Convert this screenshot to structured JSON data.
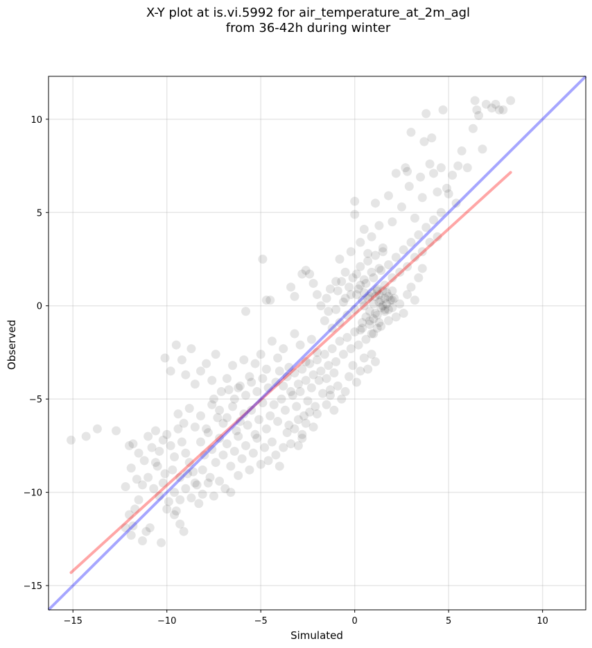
{
  "chart_data": {
    "type": "scatter",
    "title": "X-Y plot at is.vi.5992 for air_temperature_at_2m_agl",
    "subtitle": "from 36-42h during winter",
    "xlabel": "Simulated",
    "ylabel": "Observed",
    "xlim": [
      -16.3,
      12.3
    ],
    "ylim": [
      -16.3,
      12.3
    ],
    "xticks": [
      -15,
      -10,
      -5,
      0,
      5,
      10
    ],
    "yticks": [
      -15,
      -10,
      -5,
      0,
      5,
      10
    ],
    "xtick_labels": [
      "−15",
      "−10",
      "−5",
      "0",
      "5",
      "10"
    ],
    "ytick_labels": [
      "−15",
      "−10",
      "−5",
      "0",
      "5",
      "10"
    ],
    "grid": true,
    "point_color": "#000000",
    "point_alpha": 0.1,
    "fit_line": {
      "color": "#ff0000",
      "x": [
        -15.1,
        8.3
      ],
      "y": [
        -14.3,
        7.15
      ]
    },
    "identity_line": {
      "color": "#0000ff",
      "x": [
        -16.3,
        12.3
      ],
      "y": [
        -16.3,
        12.3
      ]
    },
    "points": [
      [
        -15.1,
        -7.2
      ],
      [
        -14.3,
        -7.0
      ],
      [
        -13.7,
        -6.6
      ],
      [
        -12.7,
        -6.7
      ],
      [
        -12.2,
        -11.9
      ],
      [
        -12.0,
        -11.2
      ],
      [
        -11.9,
        -12.3
      ],
      [
        -11.8,
        -11.8
      ],
      [
        -11.5,
        -10.4
      ],
      [
        -11.3,
        -12.6
      ],
      [
        -11.1,
        -12.1
      ],
      [
        -10.9,
        -11.9
      ],
      [
        -10.3,
        -12.7
      ],
      [
        -10.0,
        -10.9
      ],
      [
        -9.6,
        -11.2
      ],
      [
        -9.3,
        -11.7
      ],
      [
        -9.1,
        -12.1
      ],
      [
        -11.8,
        -7.4
      ],
      [
        -11.5,
        -7.9
      ],
      [
        -11.2,
        -8.3
      ],
      [
        -11.0,
        -7.0
      ],
      [
        -10.8,
        -7.6
      ],
      [
        -10.6,
        -8.4
      ],
      [
        -10.4,
        -7.8
      ],
      [
        -10.2,
        -7.2
      ],
      [
        -10.0,
        -6.9
      ],
      [
        -9.8,
        -7.5
      ],
      [
        -9.6,
        -8.1
      ],
      [
        -9.4,
        -6.6
      ],
      [
        -9.2,
        -7.3
      ],
      [
        -9.0,
        -7.9
      ],
      [
        -8.8,
        -8.4
      ],
      [
        -11.6,
        -9.3
      ],
      [
        -11.3,
        -9.6
      ],
      [
        -11.0,
        -9.2
      ],
      [
        -10.7,
        -9.8
      ],
      [
        -10.4,
        -10.2
      ],
      [
        -10.2,
        -9.5
      ],
      [
        -9.9,
        -10.5
      ],
      [
        -9.6,
        -10.0
      ],
      [
        -9.3,
        -10.4
      ],
      [
        -9.0,
        -9.8
      ],
      [
        -8.7,
        -10.3
      ],
      [
        -8.4,
        -9.6
      ],
      [
        -8.1,
        -10.1
      ],
      [
        -7.8,
        -9.5
      ],
      [
        -7.5,
        -10.2
      ],
      [
        -7.2,
        -9.4
      ],
      [
        -6.9,
        -9.8
      ],
      [
        -6.6,
        -10.0
      ],
      [
        -6.2,
        -9.1
      ],
      [
        -10.1,
        -2.8
      ],
      [
        -9.8,
        -3.5
      ],
      [
        -9.5,
        -2.1
      ],
      [
        -9.2,
        -2.9
      ],
      [
        -9.0,
        -3.7
      ],
      [
        -8.7,
        -2.3
      ],
      [
        -8.5,
        -4.2
      ],
      [
        -8.2,
        -3.5
      ],
      [
        -7.9,
        -3.1
      ],
      [
        -7.6,
        -4.0
      ],
      [
        -7.4,
        -2.6
      ],
      [
        -7.1,
        -4.6
      ],
      [
        -6.8,
        -3.9
      ],
      [
        -6.5,
        -3.2
      ],
      [
        -6.2,
        -4.4
      ],
      [
        -5.9,
        -2.9
      ],
      [
        -5.6,
        -3.8
      ],
      [
        -5.3,
        -3.1
      ],
      [
        -5.0,
        -2.6
      ],
      [
        -4.7,
        -3.4
      ],
      [
        -4.4,
        -1.9
      ],
      [
        -4.1,
        -2.8
      ],
      [
        -3.8,
        -2.3
      ],
      [
        -3.5,
        -3.3
      ],
      [
        -3.2,
        -1.5
      ],
      [
        -2.9,
        -2.1
      ],
      [
        -2.6,
        -3.0
      ],
      [
        -2.3,
        -1.8
      ],
      [
        -2.0,
        -2.5
      ],
      [
        -5.8,
        -0.3
      ],
      [
        -4.9,
        2.5
      ],
      [
        -4.7,
        0.3
      ],
      [
        -4.5,
        0.3
      ],
      [
        -3.4,
        1.0
      ],
      [
        -3.2,
        0.5
      ],
      [
        -2.8,
        1.7
      ],
      [
        -2.6,
        1.9
      ],
      [
        -2.4,
        1.7
      ],
      [
        -2.2,
        1.2
      ],
      [
        -2.0,
        0.6
      ],
      [
        -1.8,
        0.0
      ],
      [
        -1.5,
        0.4
      ],
      [
        -1.3,
        0.9
      ],
      [
        -1.0,
        1.3
      ],
      [
        -0.8,
        2.5
      ],
      [
        -0.5,
        1.8
      ],
      [
        -0.2,
        2.9
      ],
      [
        0.0,
        5.6
      ],
      [
        0.0,
        4.9
      ],
      [
        0.3,
        3.4
      ],
      [
        0.5,
        4.1
      ],
      [
        0.7,
        2.8
      ],
      [
        0.9,
        3.7
      ],
      [
        1.1,
        5.5
      ],
      [
        1.3,
        4.3
      ],
      [
        1.5,
        3.1
      ],
      [
        1.8,
        5.9
      ],
      [
        2.0,
        4.5
      ],
      [
        2.2,
        7.1
      ],
      [
        2.5,
        5.3
      ],
      [
        2.7,
        7.4
      ],
      [
        2.8,
        7.2
      ],
      [
        2.9,
        6.4
      ],
      [
        3.0,
        9.3
      ],
      [
        3.2,
        4.7
      ],
      [
        3.5,
        6.9
      ],
      [
        3.6,
        5.8
      ],
      [
        3.7,
        8.8
      ],
      [
        3.8,
        10.3
      ],
      [
        4.0,
        7.6
      ],
      [
        4.1,
        9.0
      ],
      [
        4.2,
        7.1
      ],
      [
        4.4,
        6.1
      ],
      [
        4.6,
        7.4
      ],
      [
        4.7,
        10.5
      ],
      [
        4.9,
        6.3
      ],
      [
        5.0,
        6.0
      ],
      [
        5.2,
        7.0
      ],
      [
        5.4,
        5.5
      ],
      [
        5.5,
        7.5
      ],
      [
        5.7,
        8.3
      ],
      [
        6.0,
        7.4
      ],
      [
        6.3,
        9.5
      ],
      [
        6.4,
        11.0
      ],
      [
        6.5,
        10.5
      ],
      [
        6.6,
        10.2
      ],
      [
        6.8,
        8.4
      ],
      [
        7.0,
        10.8
      ],
      [
        7.3,
        10.6
      ],
      [
        7.5,
        10.8
      ],
      [
        7.7,
        10.5
      ],
      [
        7.9,
        10.5
      ],
      [
        8.3,
        11.0
      ],
      [
        -7.5,
        -5.0
      ],
      [
        -7.2,
        -5.6
      ],
      [
        -7.0,
        -6.3
      ],
      [
        -6.8,
        -6.0
      ],
      [
        -6.5,
        -5.4
      ],
      [
        -6.3,
        -6.7
      ],
      [
        -6.1,
        -6.2
      ],
      [
        -5.9,
        -5.8
      ],
      [
        -5.7,
        -6.4
      ],
      [
        -5.5,
        -5.6
      ],
      [
        -5.3,
        -6.9
      ],
      [
        -5.1,
        -6.1
      ],
      [
        -4.9,
        -5.2
      ],
      [
        -4.7,
        -6.6
      ],
      [
        -4.5,
        -5.9
      ],
      [
        -4.3,
        -5.3
      ],
      [
        -4.1,
        -6.2
      ],
      [
        -3.9,
        -5.0
      ],
      [
        -3.7,
        -5.6
      ],
      [
        -3.5,
        -6.4
      ],
      [
        -3.3,
        -4.8
      ],
      [
        -3.1,
        -5.4
      ],
      [
        -2.9,
        -4.6
      ],
      [
        -2.7,
        -5.9
      ],
      [
        -2.5,
        -5.1
      ],
      [
        -2.3,
        -4.4
      ],
      [
        -2.1,
        -5.4
      ],
      [
        -1.9,
        -4.0
      ],
      [
        -1.7,
        -4.7
      ],
      [
        -1.5,
        -3.9
      ],
      [
        -1.3,
        -4.5
      ],
      [
        -1.1,
        -3.6
      ],
      [
        -8.2,
        -7.3
      ],
      [
        -8.0,
        -8.0
      ],
      [
        -7.8,
        -6.8
      ],
      [
        -7.6,
        -7.7
      ],
      [
        -7.4,
        -8.4
      ],
      [
        -7.2,
        -7.1
      ],
      [
        -7.0,
        -8.0
      ],
      [
        -6.8,
        -7.4
      ],
      [
        -6.6,
        -8.6
      ],
      [
        -6.4,
        -7.8
      ],
      [
        -6.2,
        -7.0
      ],
      [
        -6.0,
        -8.2
      ],
      [
        -5.8,
        -7.5
      ],
      [
        -5.6,
        -8.8
      ],
      [
        -5.4,
        -7.9
      ],
      [
        -5.2,
        -7.1
      ],
      [
        -5.0,
        -8.5
      ],
      [
        -4.8,
        -7.6
      ],
      [
        -4.6,
        -8.3
      ],
      [
        -4.4,
        -7.3
      ],
      [
        -4.2,
        -8.0
      ],
      [
        -4.0,
        -8.6
      ],
      [
        -3.8,
        -7.6
      ],
      [
        -3.6,
        -6.8
      ],
      [
        -3.4,
        -7.4
      ],
      [
        -3.2,
        -6.6
      ],
      [
        -3.0,
        -6.1
      ],
      [
        -2.8,
        -7.1
      ],
      [
        -2.6,
        -6.3
      ],
      [
        -2.4,
        -5.7
      ],
      [
        -2.2,
        -6.5
      ],
      [
        -2.0,
        -5.8
      ],
      [
        -9.4,
        -5.8
      ],
      [
        -9.1,
        -6.3
      ],
      [
        -8.8,
        -5.5
      ],
      [
        -8.5,
        -6.5
      ],
      [
        -8.2,
        -5.9
      ],
      [
        -7.9,
        -6.6
      ],
      [
        -7.6,
        -5.3
      ],
      [
        -7.3,
        -6.0
      ],
      [
        -4.2,
        -4.1
      ],
      [
        -4.0,
        -3.5
      ],
      [
        -3.8,
        -4.3
      ],
      [
        -3.6,
        -3.8
      ],
      [
        -3.4,
        -4.6
      ],
      [
        -3.2,
        -3.6
      ],
      [
        -3.0,
        -4.2
      ],
      [
        -2.8,
        -3.4
      ],
      [
        -2.6,
        -4.0
      ],
      [
        -2.4,
        -3.1
      ],
      [
        -2.2,
        -3.7
      ],
      [
        -2.0,
        -2.9
      ],
      [
        -1.8,
        -3.5
      ],
      [
        -1.6,
        -2.6
      ],
      [
        -1.4,
        -3.2
      ],
      [
        -1.2,
        -2.3
      ],
      [
        -1.0,
        -3.0
      ],
      [
        -0.8,
        -1.9
      ],
      [
        -0.6,
        -2.6
      ],
      [
        -0.4,
        -1.7
      ],
      [
        -0.2,
        -2.3
      ],
      [
        0.0,
        -1.4
      ],
      [
        0.2,
        -2.1
      ],
      [
        0.4,
        -1.2
      ],
      [
        0.6,
        -1.8
      ],
      [
        0.8,
        -0.8
      ],
      [
        1.0,
        -1.5
      ],
      [
        1.2,
        -0.5
      ],
      [
        1.4,
        -1.1
      ],
      [
        1.6,
        -0.2
      ],
      [
        1.8,
        -0.8
      ],
      [
        2.0,
        0.3
      ],
      [
        -1.6,
        -0.8
      ],
      [
        -1.4,
        -0.3
      ],
      [
        -1.2,
        -1.2
      ],
      [
        -1.0,
        -0.2
      ],
      [
        -0.8,
        -0.9
      ],
      [
        -0.6,
        0.2
      ],
      [
        -0.4,
        -0.5
      ],
      [
        -0.2,
        0.6
      ],
      [
        0.0,
        -0.2
      ],
      [
        0.2,
        0.9
      ],
      [
        0.4,
        0.3
      ],
      [
        0.6,
        1.2
      ],
      [
        0.8,
        0.5
      ],
      [
        1.0,
        1.5
      ],
      [
        1.2,
        0.8
      ],
      [
        1.4,
        1.9
      ],
      [
        1.6,
        1.1
      ],
      [
        1.8,
        2.2
      ],
      [
        2.0,
        1.5
      ],
      [
        2.2,
        2.6
      ],
      [
        2.4,
        1.8
      ],
      [
        2.6,
        3.0
      ],
      [
        2.8,
        2.1
      ],
      [
        3.0,
        3.4
      ],
      [
        3.2,
        2.6
      ],
      [
        3.4,
        3.8
      ],
      [
        3.6,
        2.9
      ],
      [
        3.8,
        4.2
      ],
      [
        4.0,
        3.4
      ],
      [
        4.2,
        4.6
      ],
      [
        4.4,
        3.7
      ],
      [
        4.6,
        5.0
      ],
      [
        0.5,
        0.0
      ],
      [
        0.7,
        0.4
      ],
      [
        0.8,
        -0.3
      ],
      [
        0.9,
        0.7
      ],
      [
        1.0,
        0.1
      ],
      [
        1.1,
        0.5
      ],
      [
        1.1,
        -0.4
      ],
      [
        1.2,
        0.9
      ],
      [
        1.3,
        0.2
      ],
      [
        1.3,
        0.6
      ],
      [
        1.4,
        -0.1
      ],
      [
        1.4,
        0.3
      ],
      [
        1.5,
        0.8
      ],
      [
        1.5,
        0.0
      ],
      [
        1.6,
        0.4
      ],
      [
        1.6,
        -0.3
      ],
      [
        1.7,
        0.7
      ],
      [
        1.7,
        0.1
      ],
      [
        1.8,
        0.5
      ],
      [
        1.8,
        -0.2
      ],
      [
        1.9,
        0.3
      ],
      [
        2.0,
        0.8
      ],
      [
        2.0,
        -0.1
      ],
      [
        2.1,
        0.4
      ],
      [
        0.6,
        -0.6
      ],
      [
        0.8,
        -1.0
      ],
      [
        1.0,
        -0.7
      ],
      [
        1.2,
        -1.2
      ],
      [
        0.4,
        -0.9
      ],
      [
        0.3,
        -1.3
      ],
      [
        0.9,
        -1.5
      ],
      [
        1.3,
        -0.9
      ],
      [
        0.1,
        1.7
      ],
      [
        0.3,
        2.1
      ],
      [
        0.5,
        1.4
      ],
      [
        0.7,
        2.4
      ],
      [
        0.9,
        1.8
      ],
      [
        1.1,
        2.7
      ],
      [
        1.3,
        2.0
      ],
      [
        1.5,
        2.9
      ],
      [
        -0.9,
        0.8
      ],
      [
        -0.7,
        1.3
      ],
      [
        -0.5,
        0.4
      ],
      [
        -0.3,
        1.0
      ],
      [
        -0.1,
        1.5
      ],
      [
        0.1,
        0.6
      ],
      [
        0.3,
        1.1
      ],
      [
        0.5,
        0.7
      ],
      [
        2.2,
        -0.6
      ],
      [
        2.4,
        0.1
      ],
      [
        2.6,
        -0.4
      ],
      [
        2.8,
        0.6
      ],
      [
        3.0,
        1.0
      ],
      [
        3.2,
        0.3
      ],
      [
        3.4,
        1.5
      ],
      [
        3.6,
        2.0
      ],
      [
        -0.3,
        -3.8
      ],
      [
        -0.1,
        -3.2
      ],
      [
        0.1,
        -4.1
      ],
      [
        0.3,
        -3.5
      ],
      [
        0.5,
        -2.8
      ],
      [
        0.7,
        -3.4
      ],
      [
        0.9,
        -2.6
      ],
      [
        1.1,
        -3.0
      ],
      [
        -1.5,
        -5.3
      ],
      [
        -1.3,
        -4.8
      ],
      [
        -1.1,
        -5.6
      ],
      [
        -0.9,
        -4.3
      ],
      [
        -0.7,
        -5.0
      ],
      [
        -0.5,
        -4.6
      ],
      [
        -2.8,
        -6.9
      ],
      [
        -3.0,
        -7.5
      ],
      [
        -10.5,
        -8.6
      ],
      [
        -10.1,
        -9.0
      ],
      [
        -9.7,
        -8.8
      ],
      [
        -9.3,
        -9.2
      ],
      [
        -8.9,
        -9.0
      ],
      [
        -8.5,
        -9.5
      ],
      [
        -8.1,
        -8.8
      ],
      [
        -7.7,
        -9.2
      ],
      [
        -11.9,
        -8.7
      ],
      [
        -12.2,
        -9.7
      ],
      [
        -12.0,
        -7.5
      ],
      [
        -10.6,
        -6.7
      ],
      [
        -8.6,
        -8.9
      ],
      [
        -8.3,
        -10.6
      ],
      [
        -9.5,
        -11.0
      ],
      [
        -11.7,
        -10.9
      ],
      [
        -6.7,
        -4.5
      ],
      [
        -6.4,
        -5.0
      ],
      [
        -6.1,
        -4.3
      ],
      [
        -5.8,
        -4.8
      ],
      [
        -5.5,
        -4.1
      ],
      [
        -5.2,
        -4.6
      ],
      [
        -4.9,
        -3.9
      ],
      [
        -4.6,
        -4.4
      ]
    ]
  }
}
